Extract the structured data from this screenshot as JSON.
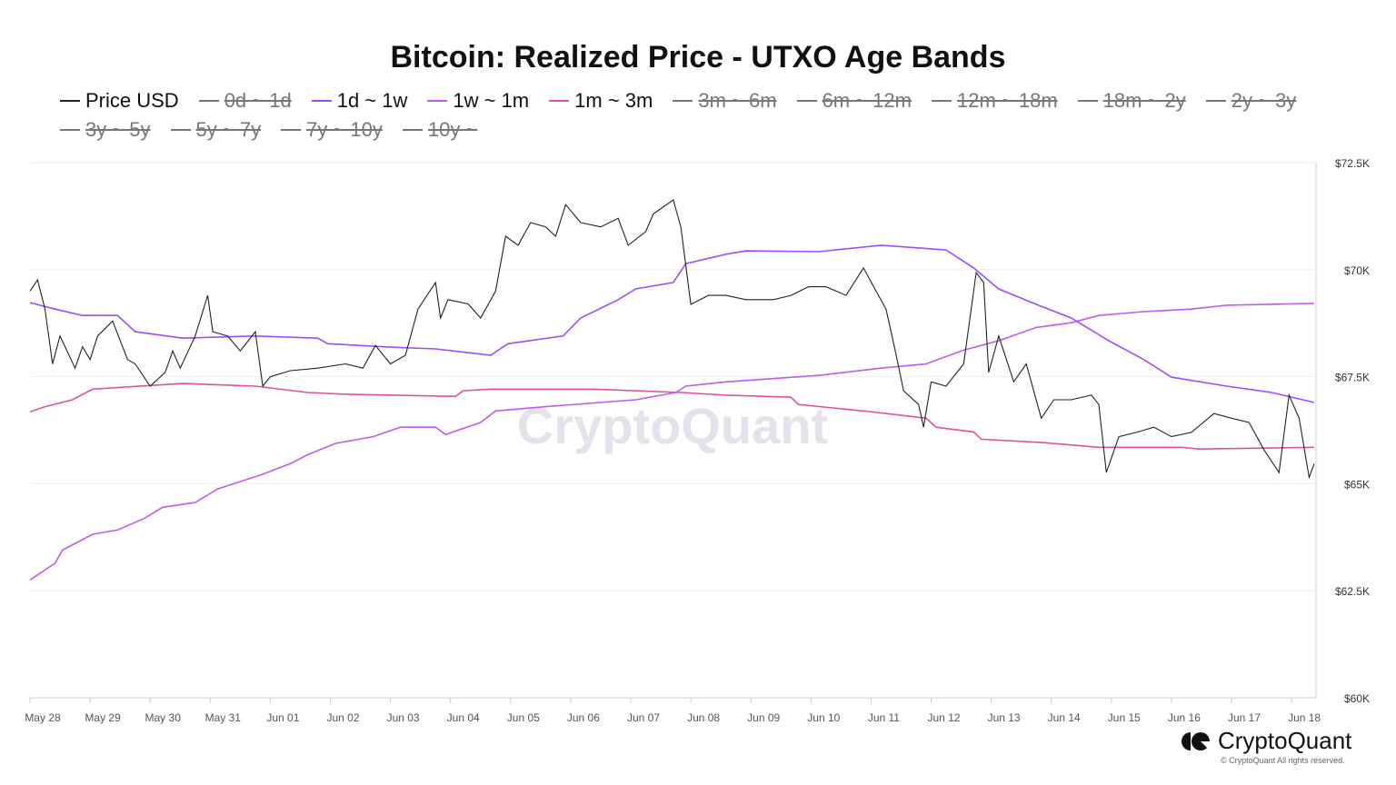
{
  "chart_data": {
    "type": "line",
    "title": "Bitcoin: Realized Price - UTXO Age Bands",
    "ylim": [
      60000,
      72500
    ],
    "y_ticks": [
      "$60K",
      "$62.5K",
      "$65K",
      "$67.5K",
      "$70K",
      "$72.5K"
    ],
    "y_tick_values": [
      60000,
      62500,
      65000,
      67500,
      70000,
      72500
    ],
    "y_axis_position": "right",
    "x_ticks": [
      "May 28",
      "May 29",
      "May 30",
      "May 31",
      "Jun 01",
      "Jun 02",
      "Jun 03",
      "Jun 04",
      "Jun 05",
      "Jun 06",
      "Jun 07",
      "Jun 08",
      "Jun 09",
      "Jun 10",
      "Jun 11",
      "Jun 12",
      "Jun 13",
      "Jun 14",
      "Jun 15",
      "Jun 16",
      "Jun 17",
      "Jun 18"
    ],
    "x_range": [
      "May 28 00:00",
      "Jun 18 09:00"
    ],
    "grid": true,
    "legend_placement": "top",
    "legend": [
      {
        "name": "Price USD",
        "color": "#222222",
        "visible": true
      },
      {
        "name": "0d ~ 1d",
        "visible": false
      },
      {
        "name": "1d ~ 1w",
        "color": "#9b4dff",
        "visible": true
      },
      {
        "name": "1w ~ 1m",
        "color": "#c05bf0",
        "visible": true
      },
      {
        "name": "1m ~ 3m",
        "color": "#e0529c",
        "visible": true
      },
      {
        "name": "3m ~ 6m",
        "visible": false
      },
      {
        "name": "6m ~ 12m",
        "visible": false
      },
      {
        "name": "12m ~ 18m",
        "visible": false
      },
      {
        "name": "18m ~ 2y",
        "visible": false
      },
      {
        "name": "2y ~ 3y",
        "visible": false
      },
      {
        "name": "3y ~ 5y",
        "visible": false
      },
      {
        "name": "5y ~ 7y",
        "visible": false
      },
      {
        "name": "7y ~ 10y",
        "visible": false
      },
      {
        "name": "10y ~",
        "visible": false
      }
    ],
    "series": [
      {
        "name": "Price USD",
        "color": "#222222",
        "points": [
          [
            "May 28 00:00",
            69500
          ],
          [
            "May 28 03:00",
            69760
          ],
          [
            "May 28 06:00",
            69080
          ],
          [
            "May 28 09:00",
            67800
          ],
          [
            "May 28 12:00",
            68450
          ],
          [
            "May 28 18:00",
            67700
          ],
          [
            "May 28 21:00",
            68200
          ],
          [
            "May 29 00:00",
            67900
          ],
          [
            "May 29 03:00",
            68450
          ],
          [
            "May 29 09:00",
            68800
          ],
          [
            "May 29 15:00",
            67900
          ],
          [
            "May 29 18:00",
            67800
          ],
          [
            "May 30 00:00",
            67280
          ],
          [
            "May 30 06:00",
            67600
          ],
          [
            "May 30 09:00",
            68100
          ],
          [
            "May 30 12:00",
            67700
          ],
          [
            "May 30 18:00",
            68450
          ],
          [
            "May 30 23:00",
            69400
          ],
          [
            "May 31 01:00",
            68550
          ],
          [
            "May 31 07:00",
            68450
          ],
          [
            "May 31 12:00",
            68100
          ],
          [
            "May 31 18:00",
            68550
          ],
          [
            "May 31 21:00",
            67280
          ],
          [
            "Jun 01 00:00",
            67500
          ],
          [
            "Jun 01 08:00",
            67640
          ],
          [
            "Jun 01 19:00",
            67700
          ],
          [
            "Jun 02 06:00",
            67800
          ],
          [
            "Jun 02 13:00",
            67700
          ],
          [
            "Jun 02 18:00",
            68230
          ],
          [
            "Jun 03 00:00",
            67800
          ],
          [
            "Jun 03 06:00",
            68000
          ],
          [
            "Jun 03 11:00",
            69080
          ],
          [
            "Jun 03 18:00",
            69700
          ],
          [
            "Jun 03 20:00",
            68870
          ],
          [
            "Jun 03 23:00",
            69300
          ],
          [
            "Jun 04 07:00",
            69200
          ],
          [
            "Jun 04 12:00",
            68870
          ],
          [
            "Jun 04 18:00",
            69500
          ],
          [
            "Jun 04 22:00",
            70780
          ],
          [
            "Jun 05 03:00",
            70570
          ],
          [
            "Jun 05 08:00",
            71100
          ],
          [
            "Jun 05 14:00",
            71000
          ],
          [
            "Jun 05 18:00",
            70780
          ],
          [
            "Jun 05 22:00",
            71520
          ],
          [
            "Jun 06 04:00",
            71100
          ],
          [
            "Jun 06 12:00",
            71000
          ],
          [
            "Jun 06 19:00",
            71200
          ],
          [
            "Jun 06 23:00",
            70570
          ],
          [
            "Jun 07 06:00",
            70890
          ],
          [
            "Jun 07 09:00",
            71300
          ],
          [
            "Jun 07 17:00",
            71630
          ],
          [
            "Jun 07 20:00",
            71000
          ],
          [
            "Jun 08 00:00",
            69190
          ],
          [
            "Jun 08 07:00",
            69400
          ],
          [
            "Jun 08 14:00",
            69400
          ],
          [
            "Jun 08 22:00",
            69300
          ],
          [
            "Jun 09 09:00",
            69300
          ],
          [
            "Jun 09 16:00",
            69400
          ],
          [
            "Jun 09 23:00",
            69600
          ],
          [
            "Jun 10 06:00",
            69600
          ],
          [
            "Jun 10 14:00",
            69400
          ],
          [
            "Jun 10 21:00",
            70040
          ],
          [
            "Jun 11 02:00",
            69500
          ],
          [
            "Jun 11 06:00",
            69080
          ],
          [
            "Jun 11 10:00",
            68020
          ],
          [
            "Jun 11 13:00",
            67170
          ],
          [
            "Jun 11 19:00",
            66850
          ],
          [
            "Jun 11 21:00",
            66320
          ],
          [
            "Jun 12 00:00",
            67380
          ],
          [
            "Jun 12 06:00",
            67280
          ],
          [
            "Jun 12 13:00",
            67800
          ],
          [
            "Jun 12 18:00",
            69930
          ],
          [
            "Jun 12 21:00",
            69700
          ],
          [
            "Jun 12 23:00",
            67600
          ],
          [
            "Jun 13 03:00",
            68450
          ],
          [
            "Jun 13 09:00",
            67380
          ],
          [
            "Jun 13 14:00",
            67800
          ],
          [
            "Jun 13 20:00",
            66530
          ],
          [
            "Jun 14 01:00",
            66960
          ],
          [
            "Jun 14 08:00",
            66960
          ],
          [
            "Jun 14 16:00",
            67070
          ],
          [
            "Jun 14 19:00",
            66850
          ],
          [
            "Jun 14 22:00",
            65260
          ],
          [
            "Jun 15 03:00",
            66100
          ],
          [
            "Jun 15 10:00",
            66200
          ],
          [
            "Jun 15 17:00",
            66320
          ],
          [
            "Jun 16 00:00",
            66100
          ],
          [
            "Jun 16 08:00",
            66200
          ],
          [
            "Jun 16 17:00",
            66640
          ],
          [
            "Jun 17 00:00",
            66530
          ],
          [
            "Jun 17 07:00",
            66430
          ],
          [
            "Jun 17 13:00",
            65790
          ],
          [
            "Jun 17 19:00",
            65260
          ],
          [
            "Jun 17 23:00",
            67070
          ],
          [
            "Jun 18 03:00",
            66530
          ],
          [
            "Jun 18 07:00",
            65150
          ],
          [
            "Jun 18 09:00",
            65460
          ]
        ]
      },
      {
        "name": "1d ~ 1w",
        "color": "#9b4dff",
        "points": [
          [
            "May 28 00:00",
            69230
          ],
          [
            "May 28 10:00",
            69080
          ],
          [
            "May 28 21:00",
            68930
          ],
          [
            "May 29 11:00",
            68930
          ],
          [
            "May 29 18:00",
            68550
          ],
          [
            "May 30 13:00",
            68400
          ],
          [
            "May 31 18:00",
            68450
          ],
          [
            "Jun 01 19:00",
            68400
          ],
          [
            "Jun 01 23:00",
            68270
          ],
          [
            "Jun 03 00:00",
            68190
          ],
          [
            "Jun 03 18:00",
            68150
          ],
          [
            "Jun 04 16:00",
            68000
          ],
          [
            "Jun 04 23:00",
            68270
          ],
          [
            "Jun 05 21:00",
            68450
          ],
          [
            "Jun 06 04:00",
            68870
          ],
          [
            "Jun 06 19:00",
            69300
          ],
          [
            "Jun 07 02:00",
            69550
          ],
          [
            "Jun 07 17:00",
            69700
          ],
          [
            "Jun 07 22:00",
            70140
          ],
          [
            "Jun 08 14:00",
            70360
          ],
          [
            "Jun 08 22:00",
            70440
          ],
          [
            "Jun 10 03:00",
            70420
          ],
          [
            "Jun 11 04:00",
            70570
          ],
          [
            "Jun 12 06:00",
            70460
          ],
          [
            "Jun 12 17:00",
            70040
          ],
          [
            "Jun 13 03:00",
            69550
          ],
          [
            "Jun 13 18:00",
            69190
          ],
          [
            "Jun 14 08:00",
            68870
          ],
          [
            "Jun 14 23:00",
            68340
          ],
          [
            "Jun 15 13:00",
            67900
          ],
          [
            "Jun 16 00:00",
            67490
          ],
          [
            "Jun 16 22:00",
            67280
          ],
          [
            "Jun 17 16:00",
            67130
          ],
          [
            "Jun 18 09:00",
            66900
          ]
        ]
      },
      {
        "name": "1w ~ 1m",
        "color": "#c05bf0",
        "points": [
          [
            "May 28 00:00",
            62750
          ],
          [
            "May 28 10:00",
            63140
          ],
          [
            "May 28 13:00",
            63450
          ],
          [
            "May 29 01:00",
            63820
          ],
          [
            "May 29 11:00",
            63920
          ],
          [
            "May 29 22:00",
            64200
          ],
          [
            "May 30 05:00",
            64450
          ],
          [
            "May 30 18:00",
            64560
          ],
          [
            "May 31 03:00",
            64880
          ],
          [
            "May 31 21:00",
            65220
          ],
          [
            "Jun 01 08:00",
            65470
          ],
          [
            "Jun 01 15:00",
            65680
          ],
          [
            "Jun 02 02:00",
            65940
          ],
          [
            "Jun 02 17:00",
            66100
          ],
          [
            "Jun 03 04:00",
            66320
          ],
          [
            "Jun 03 18:00",
            66320
          ],
          [
            "Jun 03 22:00",
            66150
          ],
          [
            "Jun 04 12:00",
            66430
          ],
          [
            "Jun 04 18:00",
            66700
          ],
          [
            "Jun 05 14:00",
            66800
          ],
          [
            "Jun 07 02:00",
            66960
          ],
          [
            "Jun 07 18:00",
            67130
          ],
          [
            "Jun 07 22:00",
            67280
          ],
          [
            "Jun 08 14:00",
            67380
          ],
          [
            "Jun 10 03:00",
            67530
          ],
          [
            "Jun 11 04:00",
            67700
          ],
          [
            "Jun 11 22:00",
            67800
          ],
          [
            "Jun 12 13:00",
            68120
          ],
          [
            "Jun 13 03:00",
            68340
          ],
          [
            "Jun 13 18:00",
            68650
          ],
          [
            "Jun 14 08:00",
            68760
          ],
          [
            "Jun 14 19:00",
            68930
          ],
          [
            "Jun 15 13:00",
            69020
          ],
          [
            "Jun 16 08:00",
            69080
          ],
          [
            "Jun 16 22:00",
            69170
          ],
          [
            "Jun 18 09:00",
            69210
          ]
        ]
      },
      {
        "name": "1m ~ 3m",
        "color": "#e0529c",
        "points": [
          [
            "May 28 00:00",
            66680
          ],
          [
            "May 28 06:00",
            66800
          ],
          [
            "May 28 17:00",
            66960
          ],
          [
            "May 29 01:00",
            67210
          ],
          [
            "May 30 13:00",
            67340
          ],
          [
            "May 31 18:00",
            67280
          ],
          [
            "Jun 01 15:00",
            67130
          ],
          [
            "Jun 02 06:00",
            67090
          ],
          [
            "Jun 04 02:00",
            67040
          ],
          [
            "Jun 04 05:00",
            67170
          ],
          [
            "Jun 04 16:00",
            67210
          ],
          [
            "Jun 06 09:00",
            67210
          ],
          [
            "Jun 07 20:00",
            67130
          ],
          [
            "Jun 08 14:00",
            67070
          ],
          [
            "Jun 09 16:00",
            67020
          ],
          [
            "Jun 09 19:00",
            66850
          ],
          [
            "Jun 11 00:00",
            66680
          ],
          [
            "Jun 11 22:00",
            66530
          ],
          [
            "Jun 12 02:00",
            66320
          ],
          [
            "Jun 12 17:00",
            66210
          ],
          [
            "Jun 12 20:00",
            66040
          ],
          [
            "Jun 13 21:00",
            65960
          ],
          [
            "Jun 14 19:00",
            65850
          ],
          [
            "Jun 16 04:00",
            65850
          ],
          [
            "Jun 16 11:00",
            65810
          ],
          [
            "Jun 18 09:00",
            65850
          ]
        ]
      }
    ]
  },
  "watermark": "CryptoQuant",
  "branding": {
    "logo_text": "CryptoQuant",
    "copyright": "© CryptoQuant All rights reserved."
  }
}
